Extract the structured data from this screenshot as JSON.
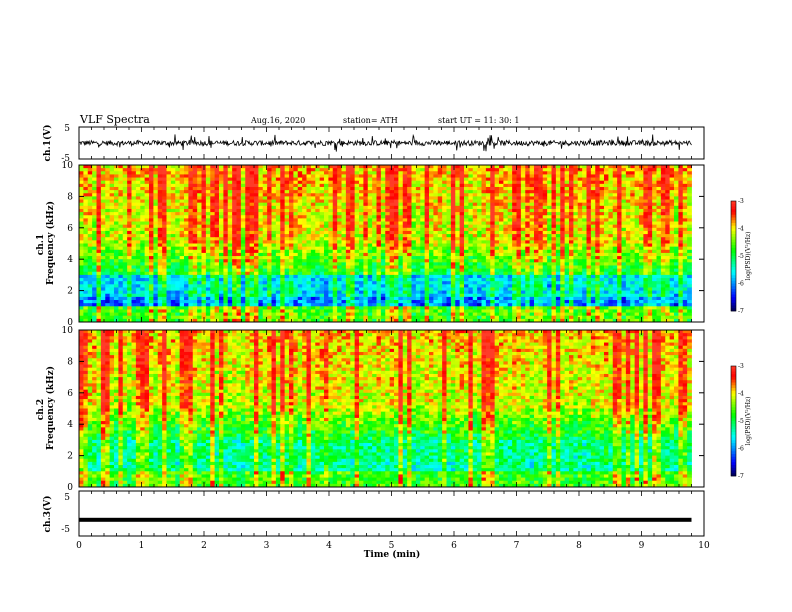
{
  "header": {
    "title": "VLF Spectra",
    "date": "Aug.16, 2020",
    "station": "station= ATH",
    "start_ut": "start  UT  =   11: 30: 1"
  },
  "colors": {
    "waveform": "#000000",
    "colormap": [
      "#000000",
      "#0000ff",
      "#00ffff",
      "#00ff00",
      "#ffff00",
      "#ff0000",
      "#ffffff"
    ]
  },
  "chart_data": [
    {
      "type": "line",
      "ylabel": "ch.1(V)",
      "xlim": [
        0,
        10
      ],
      "ylim": [
        -5,
        5
      ],
      "yticks": [
        "5",
        "-5"
      ],
      "series": [
        {
          "values_description_free": true,
          "amplitude_range_V": [
            -1.5,
            1.5
          ]
        }
      ]
    },
    {
      "type": "heatmap",
      "ylabel": "ch.1\nFrequency (kHz)",
      "xlim": [
        0,
        10
      ],
      "ylim": [
        0,
        10
      ],
      "yticks": [
        "0",
        "2",
        "4",
        "6",
        "8",
        "10"
      ],
      "data_range_min": [
        0,
        9.8
      ],
      "colorbar": {
        "label": "log(PSD)(V²/Hz)",
        "range": [
          -7,
          -3
        ],
        "ticks": [
          "-3",
          "-4",
          "-5",
          "-6",
          "-7"
        ]
      }
    },
    {
      "type": "heatmap",
      "ylabel": "ch.2\nFrequency (kHz)",
      "xlim": [
        0,
        10
      ],
      "ylim": [
        0,
        10
      ],
      "yticks": [
        "0",
        "2",
        "4",
        "6",
        "8",
        "10"
      ],
      "data_range_min": [
        0,
        9.8
      ],
      "colorbar": {
        "label": "log(PSD)(V²/Hz)",
        "range": [
          -7,
          -3
        ],
        "ticks": [
          "-3",
          "-4",
          "-5",
          "-6",
          "-7"
        ]
      }
    },
    {
      "type": "line",
      "ylabel": "ch.3(V)",
      "xlim": [
        0,
        10
      ],
      "ylim": [
        -5,
        5
      ],
      "yticks": [
        "5",
        "-5"
      ],
      "series": [
        {
          "constant_level_V": -1.4
        }
      ]
    }
  ],
  "xaxis": {
    "label": "Time (min)",
    "ticks": [
      "0",
      "1",
      "2",
      "3",
      "4",
      "5",
      "6",
      "7",
      "8",
      "9",
      "10"
    ]
  }
}
